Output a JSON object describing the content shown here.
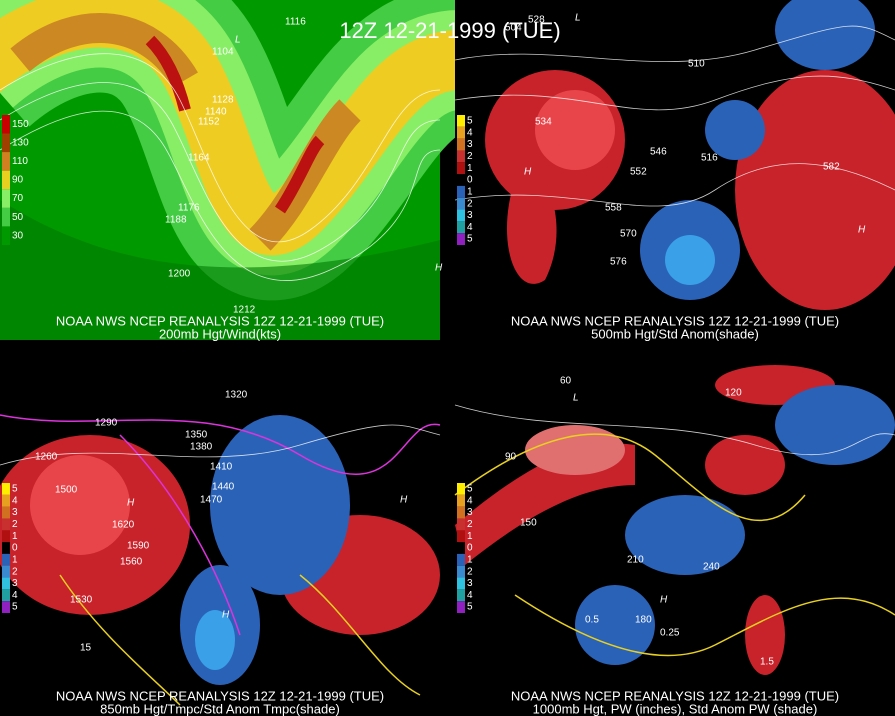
{
  "title": "12Z 12-21-1999 (TUE)",
  "panels": [
    {
      "caption": "NOAA NWS NCEP REANALYSIS 12Z 12-21-1999 (TUE)",
      "subcaption": "200mb Hgt/Wind(kts)",
      "colorbar": [
        "150",
        "130",
        "110",
        "90",
        "70",
        "50",
        "30"
      ],
      "labels": [
        "1116",
        "1104",
        "1128",
        "1140",
        "1152",
        "1164",
        "1176",
        "1188",
        "1200",
        "1212",
        "L",
        "H"
      ]
    },
    {
      "caption": "NOAA NWS NCEP REANALYSIS 12Z 12-21-1999 (TUE)",
      "subcaption": "500mb Hgt/Std Anom(shade)",
      "colorbar": [
        "5",
        "4",
        "3",
        "2",
        "1",
        "0",
        "1",
        "2",
        "3",
        "4",
        "5"
      ],
      "labels": [
        "504",
        "528",
        "510",
        "516",
        "534",
        "546",
        "552",
        "558",
        "570",
        "576",
        "582",
        "H",
        "L",
        "H"
      ]
    },
    {
      "caption": "NOAA NWS NCEP REANALYSIS 12Z 12-21-1999 (TUE)",
      "subcaption": "850mb Hgt/Tmpc/Std Anom Tmpc(shade)",
      "colorbar": [
        "5",
        "4",
        "3",
        "2",
        "1",
        "0",
        "1",
        "2",
        "3",
        "4",
        "5"
      ],
      "labels": [
        "1290",
        "1260",
        "1350",
        "1380",
        "1410",
        "1440",
        "1470",
        "1500",
        "1530",
        "1560",
        "1590",
        "1620",
        "1320",
        "H",
        "H",
        "H",
        "15"
      ]
    },
    {
      "caption": "NOAA NWS NCEP REANALYSIS 12Z 12-21-1999 (TUE)",
      "subcaption": "1000mb Hgt, PW (inches), Std Anom PW (shade)",
      "colorbar": [
        "5",
        "4",
        "3",
        "2",
        "1",
        "0",
        "1",
        "2",
        "3",
        "4",
        "5"
      ],
      "labels": [
        "60",
        "90",
        "120",
        "150",
        "180",
        "210",
        "240",
        "0.5",
        "0.25",
        "1.5",
        "H",
        "L"
      ]
    }
  ]
}
